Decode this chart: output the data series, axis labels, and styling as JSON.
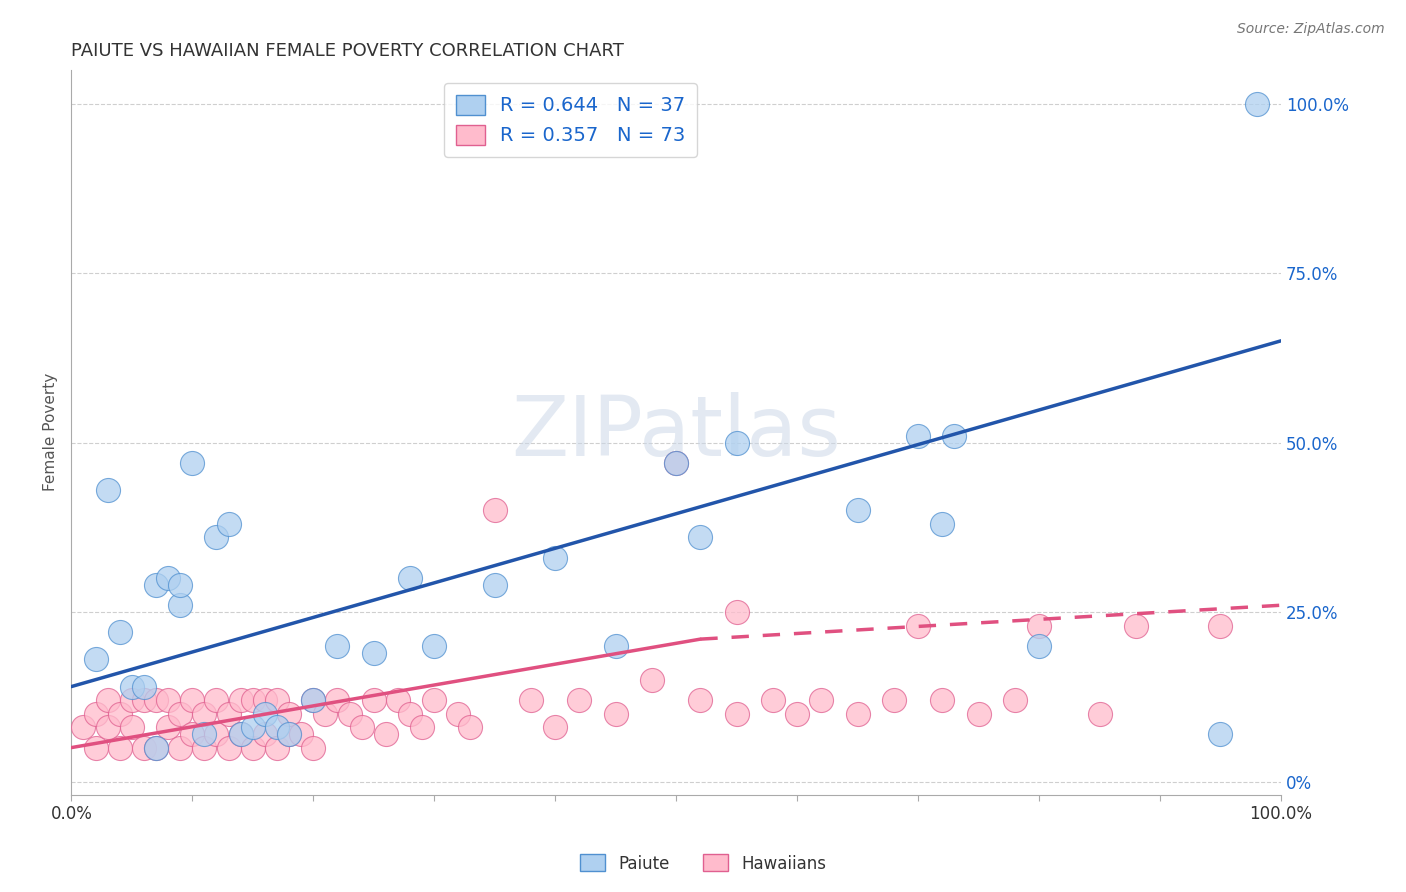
{
  "title": "PAIUTE VS HAWAIIAN FEMALE POVERTY CORRELATION CHART",
  "source_text": "Source: ZipAtlas.com",
  "ylabel": "Female Poverty",
  "watermark": "ZIPatlas",
  "xlim": [
    0.0,
    1.0
  ],
  "ylim": [
    -0.02,
    1.05
  ],
  "y_ticks_right": [
    0.0,
    0.25,
    0.5,
    0.75,
    1.0
  ],
  "y_tick_labels_right": [
    "0%",
    "25.0%",
    "50.0%",
    "75.0%",
    "100.0%"
  ],
  "paiute_R": 0.644,
  "paiute_N": 37,
  "hawaiian_R": 0.357,
  "hawaiian_N": 73,
  "paiute_color": "#afd0f0",
  "hawaiian_color": "#ffbbcc",
  "paiute_edge_color": "#5090d0",
  "hawaiian_edge_color": "#e06090",
  "paiute_line_color": "#2255aa",
  "hawaiian_line_color": "#e05080",
  "background_color": "#ffffff",
  "grid_color": "#bbbbbb",
  "title_color": "#333333",
  "legend_text_color": "#1a66cc",
  "paiute_x": [
    0.02,
    0.03,
    0.04,
    0.05,
    0.06,
    0.07,
    0.07,
    0.08,
    0.09,
    0.09,
    0.1,
    0.11,
    0.12,
    0.13,
    0.14,
    0.15,
    0.16,
    0.17,
    0.18,
    0.2,
    0.22,
    0.25,
    0.28,
    0.3,
    0.35,
    0.4,
    0.45,
    0.5,
    0.52,
    0.55,
    0.65,
    0.7,
    0.72,
    0.73,
    0.8,
    0.95,
    0.98
  ],
  "paiute_y": [
    0.18,
    0.43,
    0.22,
    0.14,
    0.14,
    0.05,
    0.29,
    0.3,
    0.26,
    0.29,
    0.47,
    0.07,
    0.36,
    0.38,
    0.07,
    0.08,
    0.1,
    0.08,
    0.07,
    0.12,
    0.2,
    0.19,
    0.3,
    0.2,
    0.29,
    0.33,
    0.2,
    0.47,
    0.36,
    0.5,
    0.4,
    0.51,
    0.38,
    0.51,
    0.2,
    0.07,
    1.0
  ],
  "hawaiian_x": [
    0.01,
    0.02,
    0.02,
    0.03,
    0.03,
    0.04,
    0.04,
    0.05,
    0.05,
    0.06,
    0.06,
    0.07,
    0.07,
    0.08,
    0.08,
    0.09,
    0.09,
    0.1,
    0.1,
    0.11,
    0.11,
    0.12,
    0.12,
    0.13,
    0.13,
    0.14,
    0.14,
    0.15,
    0.15,
    0.16,
    0.16,
    0.17,
    0.17,
    0.18,
    0.18,
    0.19,
    0.2,
    0.2,
    0.21,
    0.22,
    0.23,
    0.24,
    0.25,
    0.26,
    0.27,
    0.28,
    0.29,
    0.3,
    0.32,
    0.33,
    0.35,
    0.38,
    0.4,
    0.42,
    0.45,
    0.48,
    0.5,
    0.52,
    0.55,
    0.55,
    0.58,
    0.6,
    0.62,
    0.65,
    0.68,
    0.7,
    0.72,
    0.75,
    0.78,
    0.8,
    0.85,
    0.88,
    0.95
  ],
  "hawaiian_y": [
    0.08,
    0.05,
    0.1,
    0.08,
    0.12,
    0.05,
    0.1,
    0.08,
    0.12,
    0.05,
    0.12,
    0.05,
    0.12,
    0.08,
    0.12,
    0.05,
    0.1,
    0.07,
    0.12,
    0.05,
    0.1,
    0.07,
    0.12,
    0.05,
    0.1,
    0.07,
    0.12,
    0.05,
    0.12,
    0.07,
    0.12,
    0.05,
    0.12,
    0.07,
    0.1,
    0.07,
    0.12,
    0.05,
    0.1,
    0.12,
    0.1,
    0.08,
    0.12,
    0.07,
    0.12,
    0.1,
    0.08,
    0.12,
    0.1,
    0.08,
    0.4,
    0.12,
    0.08,
    0.12,
    0.1,
    0.15,
    0.47,
    0.12,
    0.1,
    0.25,
    0.12,
    0.1,
    0.12,
    0.1,
    0.12,
    0.23,
    0.12,
    0.1,
    0.12,
    0.23,
    0.1,
    0.23,
    0.23
  ],
  "paiute_line_start_x": 0.0,
  "paiute_line_start_y": 0.14,
  "paiute_line_end_x": 1.0,
  "paiute_line_end_y": 0.65,
  "hawaiian_line_solid_start_x": 0.0,
  "hawaiian_line_solid_start_y": 0.05,
  "hawaiian_line_solid_end_x": 0.52,
  "hawaiian_line_solid_end_y": 0.21,
  "hawaiian_line_dashed_start_x": 0.52,
  "hawaiian_line_dashed_start_y": 0.21,
  "hawaiian_line_dashed_end_x": 1.0,
  "hawaiian_line_dashed_end_y": 0.26
}
